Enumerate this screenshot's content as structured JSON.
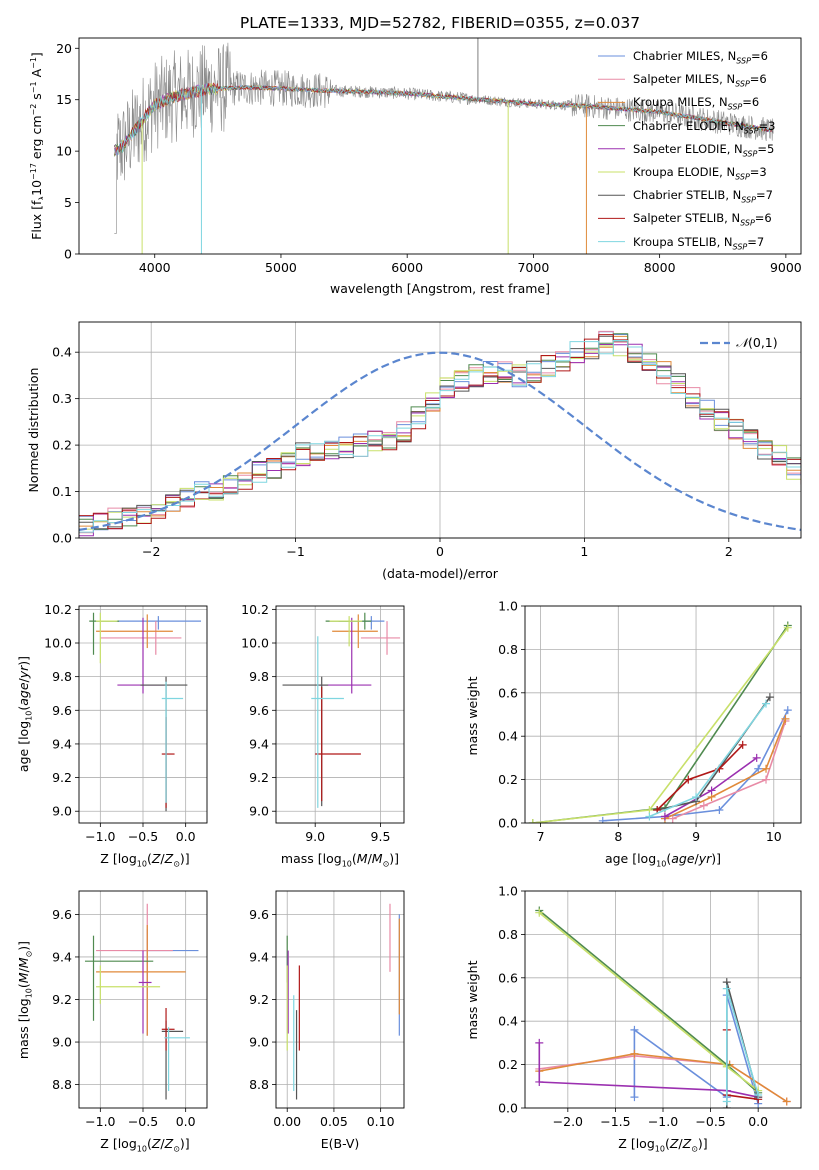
{
  "figure_title": "PLATE=1333, MJD=52782, FIBERID=0355, z=0.037",
  "colors": {
    "Chabrier MILES": "#6a8fdc",
    "Salpeter MILES": "#e88ba6",
    "Kroupa MILES": "#e08a3a",
    "Chabrier ELODIE": "#4f8a4f",
    "Salpeter ELODIE": "#9b30b0",
    "Kroupa ELODIE": "#c8e06a",
    "Chabrier STELIB": "#555555",
    "Salpeter STELIB": "#b01818",
    "Kroupa STELIB": "#7fd6e0",
    "data": "#888888"
  },
  "chart_data": [
    {
      "id": "spectrum",
      "type": "line",
      "title": "PLATE=1333, MJD=52782, FIBERID=0355, z=0.037",
      "xlabel": "wavelength [Angstrom, rest frame]",
      "ylabel": "Flux [f_λ 10^-17 erg cm^-2 s^-1 A^-1]",
      "xlim": [
        3400,
        9120
      ],
      "ylim": [
        0,
        21
      ],
      "xticks": [
        "4000",
        "5000",
        "6000",
        "7000",
        "8000",
        "9000"
      ],
      "yticks": [
        "0",
        "5",
        "10",
        "15",
        "20"
      ],
      "grid": false,
      "legend_position": "top-right",
      "series": [
        {
          "name": "Chabrier MILES, N_SSP=6"
        },
        {
          "name": "Salpeter MILES, N_SSP=6"
        },
        {
          "name": "Kroupa MILES, N_SSP=6"
        },
        {
          "name": "Chabrier ELODIE, N_SSP=3"
        },
        {
          "name": "Salpeter ELODIE, N_SSP=5"
        },
        {
          "name": "Kroupa ELODIE, N_SSP=3"
        },
        {
          "name": "Chabrier STELIB, N_SSP=7"
        },
        {
          "name": "Salpeter STELIB, N_SSP=6"
        },
        {
          "name": "Kroupa STELIB, N_SSP=7"
        }
      ],
      "continuum": {
        "x": [
          3680,
          3750,
          3900,
          4000,
          4150,
          4400,
          4700,
          5000,
          5300,
          5600,
          6000,
          6400,
          6600,
          7000,
          7400,
          8000,
          8500,
          8900
        ],
        "y": [
          10,
          10.5,
          13,
          14.5,
          15.3,
          16.0,
          16.2,
          16.1,
          15.9,
          15.8,
          15.6,
          15.2,
          15.0,
          14.6,
          14.4,
          13.8,
          12.8,
          12.0
        ]
      }
    },
    {
      "id": "residual_hist",
      "type": "step",
      "xlabel": "(data-model)/error",
      "ylabel": "Normed distribution",
      "xlim": [
        -2.5,
        2.5
      ],
      "ylim": [
        0,
        0.465
      ],
      "xticks": [
        "-2",
        "-1",
        "0",
        "1",
        "2"
      ],
      "yticks": [
        "0.0",
        "0.1",
        "0.2",
        "0.3",
        "0.4"
      ],
      "grid": true,
      "legend": "N(0,1)",
      "bin_width": 0.1,
      "bin_start": -2.5,
      "base": [
        0.028,
        0.033,
        0.04,
        0.045,
        0.055,
        0.065,
        0.078,
        0.09,
        0.098,
        0.105,
        0.118,
        0.128,
        0.14,
        0.15,
        0.165,
        0.18,
        0.19,
        0.195,
        0.198,
        0.2,
        0.21,
        0.215,
        0.23,
        0.26,
        0.29,
        0.32,
        0.34,
        0.35,
        0.355,
        0.36,
        0.35,
        0.36,
        0.37,
        0.38,
        0.4,
        0.41,
        0.42,
        0.415,
        0.4,
        0.38,
        0.355,
        0.33,
        0.3,
        0.275,
        0.255,
        0.235,
        0.215,
        0.195,
        0.175,
        0.15,
        0.13,
        0.12,
        0.11,
        0.095,
        0.08,
        0.07,
        0.06,
        0.05,
        0.045,
        0.038
      ]
    },
    {
      "id": "age_vs_Z",
      "type": "errorbar",
      "xlabel": "Z [log10(Z/Z☉)]",
      "ylabel": "age  [log10(age/yr)]",
      "xlim": [
        -1.25,
        0.25
      ],
      "ylim": [
        8.93,
        10.22
      ],
      "xticks": [
        "-1.0",
        "-0.5",
        "0.0"
      ],
      "yticks": [
        "9.0",
        "9.2",
        "9.4",
        "9.6",
        "9.8",
        "10.0",
        "10.2"
      ],
      "grid": true,
      "points": [
        {
          "x": -0.32,
          "xerr": [
            0.5,
            0.5
          ],
          "y": 10.13,
          "yerr": [
            0.05,
            0.03
          ],
          "c": "Chabrier MILES"
        },
        {
          "x": -0.35,
          "xerr": [
            0.65,
            0.3
          ],
          "y": 10.03,
          "yerr": [
            0.1,
            0.1
          ],
          "c": "Salpeter MILES"
        },
        {
          "x": -0.45,
          "xerr": [
            0.6,
            0.3
          ],
          "y": 10.07,
          "yerr": [
            0.1,
            0.1
          ],
          "c": "Kroupa MILES"
        },
        {
          "x": -1.08,
          "xerr": [
            0.05,
            0.3
          ],
          "y": 10.13,
          "yerr": [
            0.2,
            0.05
          ],
          "c": "Chabrier ELODIE"
        },
        {
          "x": -0.5,
          "xerr": [
            0.3,
            0.25
          ],
          "y": 9.75,
          "yerr": [
            0.05,
            0.4
          ],
          "c": "Salpeter ELODIE"
        },
        {
          "x": -1.0,
          "xerr": [
            0.05,
            0.2
          ],
          "y": 10.13,
          "yerr": [
            0.25,
            0.05
          ],
          "c": "Kroupa ELODIE"
        },
        {
          "x": -0.23,
          "xerr": [
            0.3,
            0.25
          ],
          "y": 9.75,
          "yerr": [
            0.75,
            0.05
          ],
          "c": "Chabrier STELIB"
        },
        {
          "x": -0.23,
          "xerr": [
            0.05,
            0.1
          ],
          "y": 9.34,
          "yerr": [
            0.32,
            0.22
          ],
          "c": "Salpeter STELIB"
        },
        {
          "x": -0.23,
          "xerr": [
            0.05,
            0.2
          ],
          "y": 9.67,
          "yerr": [
            0.62,
            0.1
          ],
          "c": "Kroupa STELIB"
        }
      ]
    },
    {
      "id": "age_vs_mass",
      "type": "errorbar",
      "xlabel": "mass [log10(M/M☉)]",
      "ylabel": "",
      "xlim": [
        8.7,
        9.68
      ],
      "ylim": [
        8.93,
        10.22
      ],
      "xticks": [
        "9.0",
        "9.5"
      ],
      "yticks": [
        "9.0",
        "9.2",
        "9.4",
        "9.6",
        "9.8",
        "10.0",
        "10.2"
      ],
      "grid": true,
      "points": [
        {
          "x": 9.43,
          "xerr": [
            0.25,
            0.1
          ],
          "y": 10.13,
          "yerr": [
            0.05,
            0.03
          ],
          "c": "Chabrier MILES"
        },
        {
          "x": 9.55,
          "xerr": [
            0.2,
            0.1
          ],
          "y": 10.03,
          "yerr": [
            0.1,
            0.1
          ],
          "c": "Salpeter MILES"
        },
        {
          "x": 9.33,
          "xerr": [
            0.2,
            0.15
          ],
          "y": 10.07,
          "yerr": [
            0.1,
            0.1
          ],
          "c": "Kroupa MILES"
        },
        {
          "x": 9.38,
          "xerr": [
            0.3,
            0.05
          ],
          "y": 10.13,
          "yerr": [
            0.05,
            0.05
          ],
          "c": "Chabrier ELODIE"
        },
        {
          "x": 9.28,
          "xerr": [
            0.25,
            0.15
          ],
          "y": 9.75,
          "yerr": [
            0.05,
            0.4
          ],
          "c": "Salpeter ELODIE"
        },
        {
          "x": 9.26,
          "xerr": [
            0.15,
            0.1
          ],
          "y": 10.13,
          "yerr": [
            0.15,
            0.03
          ],
          "c": "Kroupa ELODIE"
        },
        {
          "x": 9.05,
          "xerr": [
            0.3,
            0.05
          ],
          "y": 9.75,
          "yerr": [
            0.72,
            0.05
          ],
          "c": "Chabrier STELIB"
        },
        {
          "x": 9.05,
          "xerr": [
            0.05,
            0.3
          ],
          "y": 9.34,
          "yerr": [
            0.28,
            0.4
          ],
          "c": "Salpeter STELIB"
        },
        {
          "x": 9.02,
          "xerr": [
            0.05,
            0.2
          ],
          "y": 9.67,
          "yerr": [
            0.65,
            0.37
          ],
          "c": "Kroupa STELIB"
        }
      ]
    },
    {
      "id": "mass_weight_vs_age",
      "type": "line",
      "xlabel": "age  [log10(age/yr)]",
      "ylabel": "mass weight",
      "xlim": [
        6.8,
        10.35
      ],
      "ylim": [
        0,
        1
      ],
      "xticks": [
        "7",
        "8",
        "9",
        "10"
      ],
      "yticks": [
        "0.0",
        "0.2",
        "0.4",
        "0.6",
        "0.8",
        "1.0"
      ],
      "grid": true,
      "series": [
        {
          "c": "Chabrier MILES",
          "x": [
            7.8,
            8.6,
            9.3,
            9.8,
            10.18
          ],
          "y": [
            0.01,
            0.03,
            0.06,
            0.25,
            0.52
          ]
        },
        {
          "c": "Salpeter MILES",
          "x": [
            8.7,
            9.1,
            9.9,
            10.15
          ],
          "y": [
            0.02,
            0.08,
            0.2,
            0.47
          ]
        },
        {
          "c": "Kroupa MILES",
          "x": [
            8.6,
            9.2,
            9.9,
            10.15
          ],
          "y": [
            0.02,
            0.12,
            0.25,
            0.48
          ]
        },
        {
          "c": "Chabrier ELODIE",
          "x": [
            6.9,
            8.6,
            10.18
          ],
          "y": [
            0.0,
            0.07,
            0.91
          ]
        },
        {
          "c": "Salpeter ELODIE",
          "x": [
            8.6,
            9.2,
            9.78
          ],
          "y": [
            0.03,
            0.15,
            0.3
          ]
        },
        {
          "c": "Kroupa ELODIE",
          "x": [
            6.9,
            8.4,
            10.18
          ],
          "y": [
            0.0,
            0.06,
            0.9
          ]
        },
        {
          "c": "Chabrier STELIB",
          "x": [
            8.5,
            9.0,
            9.95
          ],
          "y": [
            0.06,
            0.1,
            0.58
          ]
        },
        {
          "c": "Salpeter STELIB",
          "x": [
            8.5,
            8.9,
            9.3,
            9.6
          ],
          "y": [
            0.06,
            0.2,
            0.25,
            0.36
          ]
        },
        {
          "c": "Kroupa STELIB",
          "x": [
            8.4,
            9.0,
            9.9
          ],
          "y": [
            0.03,
            0.12,
            0.55
          ]
        }
      ]
    },
    {
      "id": "mass_vs_Z",
      "type": "errorbar",
      "xlabel": "Z [log10(Z/Z☉)]",
      "ylabel": "mass [log10(M/M☉)]",
      "xlim": [
        -1.25,
        0.25
      ],
      "ylim": [
        8.69,
        9.71
      ],
      "xticks": [
        "-1.0",
        "-0.5",
        "0.0"
      ],
      "yticks": [
        "8.8",
        "9.0",
        "9.2",
        "9.4",
        "9.6"
      ],
      "grid": true,
      "points": [
        {
          "x": -0.45,
          "xerr": [
            0.2,
            0.6
          ],
          "y": 9.43,
          "yerr": [
            0.4,
            0.1
          ],
          "c": "Chabrier MILES"
        },
        {
          "x": -0.45,
          "xerr": [
            0.6,
            0.3
          ],
          "y": 9.43,
          "yerr": [
            0.4,
            0.22
          ],
          "c": "Salpeter MILES"
        },
        {
          "x": -0.45,
          "xerr": [
            0.6,
            0.45
          ],
          "y": 9.33,
          "yerr": [
            0.3,
            0.22
          ],
          "c": "Kroupa MILES"
        },
        {
          "x": -1.08,
          "xerr": [
            0.1,
            0.7
          ],
          "y": 9.38,
          "yerr": [
            0.28,
            0.12
          ],
          "c": "Chabrier ELODIE"
        },
        {
          "x": -0.5,
          "xerr": [
            0.05,
            0.1
          ],
          "y": 9.28,
          "yerr": [
            0.24,
            0.15
          ],
          "c": "Salpeter ELODIE"
        },
        {
          "x": -1.0,
          "xerr": [
            0.05,
            0.7
          ],
          "y": 9.26,
          "yerr": [
            0.08,
            0.1
          ],
          "c": "Kroupa ELODIE"
        },
        {
          "x": -0.23,
          "xerr": [
            0.05,
            0.2
          ],
          "y": 9.05,
          "yerr": [
            0.32,
            0.05
          ],
          "c": "Chabrier STELIB"
        },
        {
          "x": -0.23,
          "xerr": [
            0.05,
            0.1
          ],
          "y": 9.06,
          "yerr": [
            0.1,
            0.1
          ],
          "c": "Salpeter STELIB"
        },
        {
          "x": -0.2,
          "xerr": [
            0.05,
            0.25
          ],
          "y": 9.02,
          "yerr": [
            0.25,
            0.05
          ],
          "c": "Kroupa STELIB"
        }
      ]
    },
    {
      "id": "mass_vs_ebv",
      "type": "errorbar",
      "xlabel": "E(B-V)",
      "ylabel": "",
      "xlim": [
        -0.012,
        0.125
      ],
      "ylim": [
        8.69,
        9.71
      ],
      "xticks": [
        "0.00",
        "0.05",
        "0.10"
      ],
      "yticks": [
        "8.8",
        "9.0",
        "9.2",
        "9.4",
        "9.6"
      ],
      "grid": true,
      "points": [
        {
          "x": 0.12,
          "xerr": [
            0,
            0
          ],
          "y": 9.43,
          "yerr": [
            0.4,
            0.17
          ],
          "c": "Chabrier MILES"
        },
        {
          "x": 0.11,
          "xerr": [
            0,
            0
          ],
          "y": 9.43,
          "yerr": [
            0.1,
            0.22
          ],
          "c": "Salpeter MILES"
        },
        {
          "x": 0.12,
          "xerr": [
            0,
            0
          ],
          "y": 9.33,
          "yerr": [
            0.2,
            0.25
          ],
          "c": "Kroupa MILES"
        },
        {
          "x": 0.0,
          "xerr": [
            0,
            0
          ],
          "y": 9.38,
          "yerr": [
            0.1,
            0.12
          ],
          "c": "Chabrier ELODIE"
        },
        {
          "x": 0.001,
          "xerr": [
            0,
            0
          ],
          "y": 9.28,
          "yerr": [
            0.24,
            0.15
          ],
          "c": "Salpeter ELODIE"
        },
        {
          "x": 0.0,
          "xerr": [
            0,
            0
          ],
          "y": 9.26,
          "yerr": [
            0.3,
            0.1
          ],
          "c": "Kroupa ELODIE"
        },
        {
          "x": 0.01,
          "xerr": [
            0,
            0
          ],
          "y": 9.05,
          "yerr": [
            0.32,
            0.1
          ],
          "c": "Chabrier STELIB"
        },
        {
          "x": 0.013,
          "xerr": [
            0,
            0
          ],
          "y": 9.16,
          "yerr": [
            0.2,
            0.2
          ],
          "c": "Salpeter STELIB"
        },
        {
          "x": 0.007,
          "xerr": [
            0,
            0
          ],
          "y": 9.02,
          "yerr": [
            0.25,
            0.2
          ],
          "c": "Kroupa STELIB"
        }
      ]
    },
    {
      "id": "mass_weight_vs_Z",
      "type": "line",
      "xlabel": "Z [log10(Z/Z☉)]",
      "ylabel": "mass weight",
      "xlim": [
        -2.45,
        0.45
      ],
      "ylim": [
        0,
        1
      ],
      "xticks": [
        "-2.0",
        "-1.5",
        "-1.0",
        "-0.5",
        "0.0"
      ],
      "yticks": [
        "0.0",
        "0.2",
        "0.4",
        "0.6",
        "0.8",
        "1.0"
      ],
      "grid": true,
      "series": [
        {
          "c": "Chabrier MILES",
          "x": [
            -1.3,
            -1.3,
            -0.33,
            -0.33,
            0.0
          ],
          "y": [
            0.05,
            0.36,
            0.05,
            0.52,
            0.02
          ]
        },
        {
          "c": "Salpeter MILES",
          "x": [
            -2.3,
            -1.3,
            -0.3,
            0.3
          ],
          "y": [
            0.18,
            0.24,
            0.2,
            0.03
          ]
        },
        {
          "c": "Kroupa MILES",
          "x": [
            -2.3,
            -1.3,
            -0.3,
            0.3
          ],
          "y": [
            0.17,
            0.25,
            0.2,
            0.03
          ]
        },
        {
          "c": "Chabrier ELODIE",
          "x": [
            -2.3,
            -0.33,
            0.0
          ],
          "y": [
            0.91,
            0.2,
            0.07
          ]
        },
        {
          "c": "Salpeter ELODIE",
          "x": [
            -2.3,
            -2.3,
            -0.33,
            0.0
          ],
          "y": [
            0.3,
            0.12,
            0.08,
            0.05
          ]
        },
        {
          "c": "Kroupa ELODIE",
          "x": [
            -2.3,
            -0.33,
            0.0
          ],
          "y": [
            0.9,
            0.19,
            0.08
          ]
        },
        {
          "c": "Chabrier STELIB",
          "x": [
            -0.33,
            -0.33,
            0.0
          ],
          "y": [
            0.0,
            0.58,
            0.05
          ]
        },
        {
          "c": "Salpeter STELIB",
          "x": [
            -0.33,
            -0.33,
            0.0
          ],
          "y": [
            0.36,
            0.06,
            0.04
          ]
        },
        {
          "c": "Kroupa STELIB",
          "x": [
            -0.33,
            -0.33,
            0.0
          ],
          "y": [
            0.03,
            0.55,
            0.06
          ]
        }
      ]
    }
  ]
}
